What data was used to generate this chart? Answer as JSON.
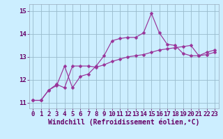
{
  "x": [
    0,
    1,
    2,
    3,
    4,
    5,
    6,
    7,
    8,
    9,
    10,
    11,
    12,
    13,
    14,
    15,
    16,
    17,
    18,
    19,
    20,
    21,
    22,
    23
  ],
  "line1": [
    11.1,
    11.1,
    11.55,
    11.75,
    12.6,
    11.65,
    12.15,
    12.25,
    12.6,
    13.05,
    13.7,
    13.8,
    13.85,
    13.85,
    14.05,
    14.9,
    14.05,
    13.55,
    13.5,
    13.15,
    13.05,
    13.05,
    13.2,
    13.3
  ],
  "line2": [
    11.1,
    11.1,
    11.55,
    11.8,
    11.65,
    12.6,
    12.6,
    12.6,
    12.55,
    12.65,
    12.8,
    12.9,
    13.0,
    13.05,
    13.1,
    13.2,
    13.3,
    13.35,
    13.4,
    13.45,
    13.5,
    13.05,
    13.1,
    13.2
  ],
  "line_color": "#993399",
  "bg_color": "#cceeff",
  "grid_color": "#99bbcc",
  "yticks": [
    11,
    12,
    13,
    14,
    15
  ],
  "xticks": [
    0,
    1,
    2,
    3,
    4,
    5,
    6,
    7,
    8,
    9,
    10,
    11,
    12,
    13,
    14,
    15,
    16,
    17,
    18,
    19,
    20,
    21,
    22,
    23
  ],
  "ylim": [
    10.75,
    15.3
  ],
  "xlim": [
    -0.5,
    23.5
  ],
  "xlabel": "Windchill (Refroidissement éolien,°C)",
  "xlabel_fontsize": 7,
  "tick_fontsize": 6.5,
  "markersize": 2.5,
  "linewidth": 0.85
}
